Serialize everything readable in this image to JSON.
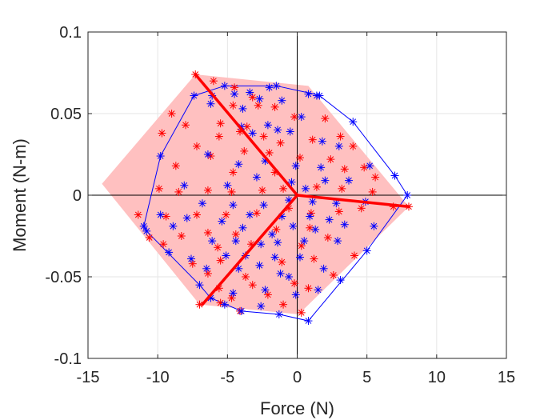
{
  "chart_data": {
    "type": "scatter",
    "xlabel": "Force (N)",
    "ylabel": "Moment (N-m)",
    "xlim": [
      -15,
      15
    ],
    "ylim": [
      -0.1,
      0.1
    ],
    "xticks": [
      -15,
      -10,
      -5,
      0,
      5,
      10,
      15
    ],
    "xtick_labels": [
      "-15",
      "-10",
      "-5",
      "0",
      "5",
      "10",
      "15"
    ],
    "yticks": [
      -0.1,
      -0.05,
      0,
      0.05,
      0.1
    ],
    "ytick_labels": [
      "-0.1",
      "-0.05",
      "0",
      "0.05",
      "0.1"
    ],
    "grid": true,
    "colors": {
      "red": "#ff0000",
      "blue": "#0000ff",
      "fill": "#ffc0c0",
      "axes": "#262626",
      "grid": "#e6e6e6",
      "origin_lines": "#000000"
    },
    "region": {
      "color": "#ffc0c0",
      "points": [
        [
          -7.3,
          0.074
        ],
        [
          0.8,
          0.067
        ],
        [
          8,
          -0.007
        ],
        [
          0.1,
          -0.073
        ],
        [
          -7,
          -0.067
        ],
        [
          -14,
          0.007
        ]
      ]
    },
    "spokes": {
      "color": "#ff0000",
      "center": [
        0,
        0
      ],
      "ends": [
        [
          -7.3,
          0.074
        ],
        [
          8,
          -0.007
        ],
        [
          -6.8,
          -0.067
        ]
      ]
    },
    "hull": {
      "color": "#0000ff",
      "points": [
        [
          -5.2,
          0.067
        ],
        [
          -1.5,
          0.067
        ],
        [
          1.2,
          0.062
        ],
        [
          1.6,
          0.061
        ],
        [
          4,
          0.045
        ],
        [
          7,
          0.012
        ],
        [
          7.9,
          0
        ],
        [
          5,
          -0.034
        ],
        [
          0.8,
          -0.077
        ],
        [
          -1.3,
          -0.073
        ],
        [
          -4,
          -0.071
        ],
        [
          -6.2,
          -0.063
        ],
        [
          -7,
          -0.055
        ],
        [
          -10.8,
          -0.022
        ],
        [
          -11,
          -0.019
        ],
        [
          -9.8,
          0.024
        ],
        [
          -7.4,
          0.061
        ]
      ]
    },
    "series": [
      {
        "marker": "*",
        "color": "#ff0000",
        "points": [
          [
            -7.3,
            0.074
          ],
          [
            -6,
            0.07
          ],
          [
            -4.5,
            0.066
          ],
          [
            -3.2,
            0.06
          ],
          [
            -4.6,
            0.055
          ],
          [
            -2.8,
            0.055
          ],
          [
            -1.6,
            0.054
          ],
          [
            -9,
            0.05
          ],
          [
            -8,
            0.043
          ],
          [
            -5.5,
            0.044
          ],
          [
            -3.6,
            0.042
          ],
          [
            -0.2,
            0.048
          ],
          [
            2,
            0.047
          ],
          [
            3.1,
            0.036
          ],
          [
            -9.7,
            0.038
          ],
          [
            -7.2,
            0.03
          ],
          [
            -5.6,
            0.036
          ],
          [
            -4.1,
            0.039
          ],
          [
            -2.4,
            0.036
          ],
          [
            -1.2,
            0.032
          ],
          [
            1.1,
            0.034
          ],
          [
            4,
            0.03
          ],
          [
            -6.2,
            0.024
          ],
          [
            -3.8,
            0.027
          ],
          [
            -2,
            0.026
          ],
          [
            0.2,
            0.023
          ],
          [
            2.4,
            0.022
          ],
          [
            4.8,
            0.017
          ],
          [
            -8.7,
            0.018
          ],
          [
            -4.6,
            0.014
          ],
          [
            -1.6,
            0.014
          ],
          [
            3.4,
            0.016
          ],
          [
            5.6,
            0.011
          ],
          [
            -9.9,
            0.004
          ],
          [
            -8.5,
            0.002
          ],
          [
            -6.4,
            0.003
          ],
          [
            -4.7,
            0.002
          ],
          [
            -2.5,
            0.003
          ],
          [
            -1,
            0.004
          ],
          [
            1.4,
            0.005
          ],
          [
            3.2,
            0.004
          ],
          [
            5.4,
            0.002
          ],
          [
            8,
            -0.007
          ],
          [
            -11.4,
            -0.012
          ],
          [
            -9.4,
            -0.013
          ],
          [
            -7.2,
            -0.012
          ],
          [
            -5.1,
            -0.012
          ],
          [
            -2.9,
            -0.011
          ],
          [
            -0.6,
            -0.008
          ],
          [
            1,
            -0.011
          ],
          [
            3,
            -0.01
          ],
          [
            4.6,
            -0.008
          ],
          [
            6.9,
            -0.007
          ],
          [
            -10.6,
            -0.026
          ],
          [
            -8.3,
            -0.025
          ],
          [
            -6.4,
            -0.023
          ],
          [
            -4.4,
            -0.024
          ],
          [
            -1.5,
            -0.021
          ],
          [
            0.9,
            -0.02
          ],
          [
            2.2,
            -0.026
          ],
          [
            -9.6,
            -0.03
          ],
          [
            -5.7,
            -0.032
          ],
          [
            -3.3,
            -0.03
          ],
          [
            0.3,
            -0.031
          ],
          [
            1.2,
            -0.039
          ],
          [
            4.1,
            -0.037
          ],
          [
            -7.5,
            -0.042
          ],
          [
            -5.5,
            -0.04
          ],
          [
            -1.1,
            -0.041
          ],
          [
            2.6,
            -0.049
          ],
          [
            -6.4,
            -0.048
          ],
          [
            -3.7,
            -0.05
          ],
          [
            -0.2,
            -0.054
          ],
          [
            -5.6,
            -0.057
          ],
          [
            -3.2,
            -0.055
          ],
          [
            0.8,
            -0.057
          ],
          [
            -4.7,
            -0.063
          ],
          [
            -2.1,
            -0.061
          ],
          [
            -7,
            -0.067
          ],
          [
            -5.5,
            -0.066
          ],
          [
            -1,
            -0.067
          ],
          [
            -4.1,
            -0.071
          ],
          [
            0.3,
            -0.072
          ]
        ]
      },
      {
        "marker": "*",
        "color": "#0000ff",
        "points": [
          [
            -7.4,
            0.061
          ],
          [
            -6.1,
            0.061
          ],
          [
            -5.2,
            0.067
          ],
          [
            -4.5,
            0.062
          ],
          [
            -3.4,
            0.063
          ],
          [
            -2,
            0.066
          ],
          [
            -1.5,
            0.067
          ],
          [
            0.8,
            0.062
          ],
          [
            1.4,
            0.061
          ],
          [
            1.6,
            0.061
          ],
          [
            -6.2,
            0.056
          ],
          [
            -3.9,
            0.053
          ],
          [
            -2.7,
            0.059
          ],
          [
            -1.1,
            0.058
          ],
          [
            0.3,
            0.048
          ],
          [
            4,
            0.045
          ],
          [
            -4,
            0.042
          ],
          [
            -2.1,
            0.043
          ],
          [
            -1.4,
            0.04
          ],
          [
            -0.5,
            0.039
          ],
          [
            -3.2,
            0.038
          ],
          [
            1.8,
            0.033
          ],
          [
            3,
            0.03
          ],
          [
            -9.8,
            0.024
          ],
          [
            -6.4,
            0.025
          ],
          [
            -4.2,
            0.019
          ],
          [
            -2.3,
            0.021
          ],
          [
            -0.1,
            0.018
          ],
          [
            1.7,
            0.017
          ],
          [
            5.2,
            0.018
          ],
          [
            7,
            0.012
          ],
          [
            -8.1,
            0.006
          ],
          [
            -5,
            0.006
          ],
          [
            -2.9,
            0.011
          ],
          [
            -0.4,
            0.008
          ],
          [
            0.6,
            0.004
          ],
          [
            2,
            0.009
          ],
          [
            3.7,
            0.009
          ],
          [
            7.9,
            0
          ],
          [
            -6.8,
            -0.005
          ],
          [
            -4.6,
            -0.006
          ],
          [
            -2.4,
            -0.006
          ],
          [
            -0.6,
            -0.003
          ],
          [
            1.1,
            -0.004
          ],
          [
            2.8,
            -0.005
          ],
          [
            4.9,
            -0.004
          ],
          [
            -9.8,
            -0.012
          ],
          [
            -7.9,
            -0.014
          ],
          [
            -3.4,
            -0.012
          ],
          [
            -1.1,
            -0.013
          ],
          [
            0.9,
            -0.013
          ],
          [
            2.3,
            -0.015
          ],
          [
            -10.8,
            -0.022
          ],
          [
            -8.9,
            -0.019
          ],
          [
            -5.4,
            -0.016
          ],
          [
            -3.9,
            -0.02
          ],
          [
            -1.8,
            -0.024
          ],
          [
            -0.3,
            -0.019
          ],
          [
            1.3,
            -0.021
          ],
          [
            3.4,
            -0.018
          ],
          [
            5.5,
            -0.019
          ],
          [
            -11,
            -0.019
          ],
          [
            -6.1,
            -0.028
          ],
          [
            -4.4,
            -0.028
          ],
          [
            -2.6,
            -0.03
          ],
          [
            -1.4,
            -0.029
          ],
          [
            0.5,
            -0.028
          ],
          [
            2.9,
            -0.028
          ],
          [
            -9.2,
            -0.035
          ],
          [
            -7.6,
            -0.039
          ],
          [
            -5.1,
            -0.037
          ],
          [
            -3.7,
            -0.037
          ],
          [
            -1.6,
            -0.038
          ],
          [
            0.2,
            -0.038
          ],
          [
            5,
            -0.034
          ],
          [
            -7,
            -0.055
          ],
          [
            -6.5,
            -0.045
          ],
          [
            -4.2,
            -0.045
          ],
          [
            -2.7,
            -0.043
          ],
          [
            -1.2,
            -0.048
          ],
          [
            -0.6,
            -0.05
          ],
          [
            1.9,
            -0.045
          ],
          [
            3.1,
            -0.052
          ],
          [
            -6.2,
            -0.063
          ],
          [
            -4.6,
            -0.06
          ],
          [
            -2.3,
            -0.058
          ],
          [
            -0.1,
            -0.061
          ],
          [
            1.5,
            -0.058
          ],
          [
            -5.2,
            -0.067
          ],
          [
            -2.6,
            -0.068
          ],
          [
            -4,
            -0.071
          ],
          [
            -1.3,
            -0.073
          ],
          [
            0.8,
            -0.077
          ]
        ]
      }
    ]
  }
}
